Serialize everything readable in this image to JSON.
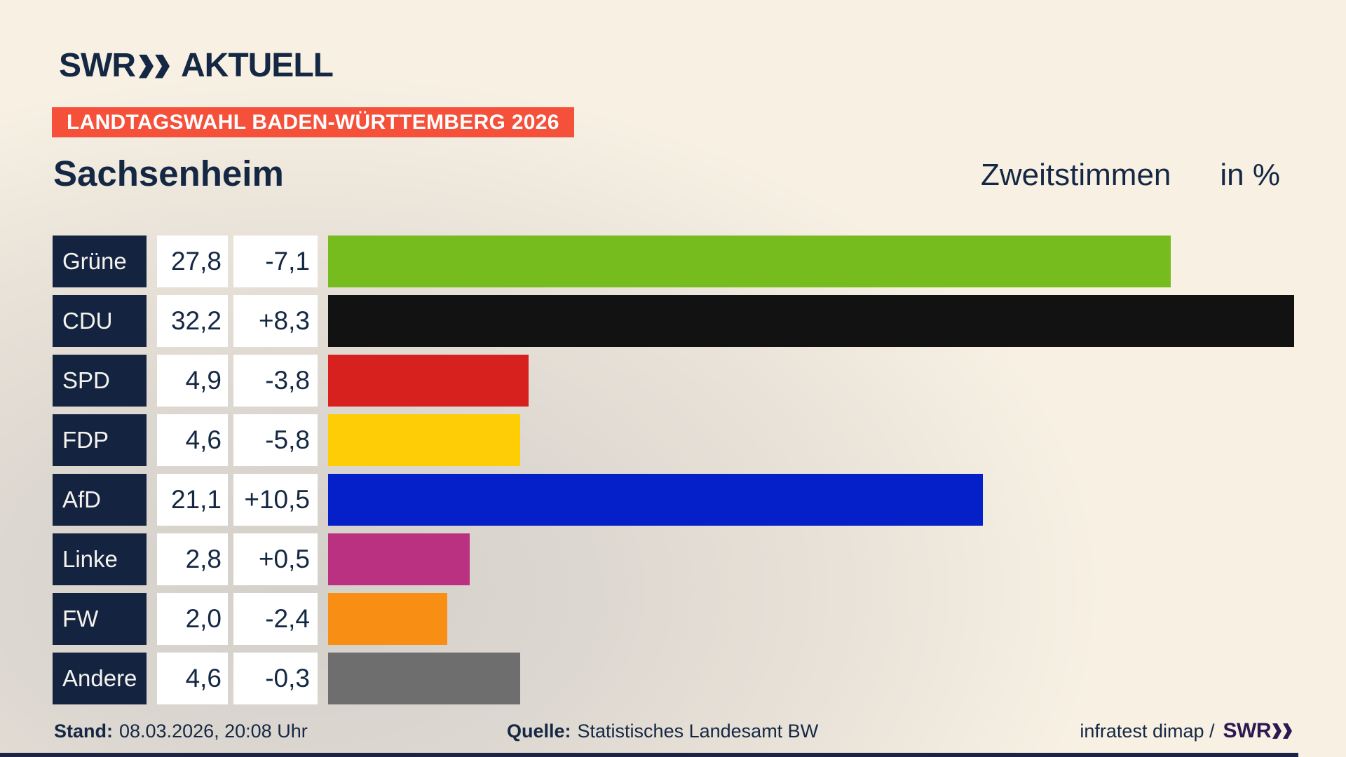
{
  "brand": {
    "logo_swr": "SWR",
    "logo_suffix": "AKTUELL"
  },
  "banner": {
    "text": "LANDTAGSWAHL BADEN-WÜRTTEMBERG 2026",
    "bg": "#f4503a"
  },
  "title": {
    "left": "Sachsenheim",
    "right_main": "Zweitstimmen",
    "right_unit": "in %"
  },
  "chart_data": {
    "type": "bar",
    "orientation": "horizontal",
    "title": "Zweitstimmen in % — Sachsenheim, Landtagswahl Baden-Württemberg 2026",
    "categories": [
      "Grüne",
      "CDU",
      "SPD",
      "FDP",
      "AfD",
      "Linke",
      "FW",
      "Andere"
    ],
    "values": [
      27.8,
      32.2,
      4.9,
      4.6,
      21.1,
      2.8,
      2.0,
      4.6
    ],
    "value_labels": [
      "27,8",
      "32,2",
      "4,9",
      "4,6",
      "21,1",
      "2,8",
      "2,0",
      "4,6"
    ],
    "diff_values": [
      -7.1,
      8.3,
      -3.8,
      -5.8,
      10.5,
      0.5,
      -2.4,
      -0.3
    ],
    "diff_labels": [
      "-7,1",
      "+8,3",
      "-3,8",
      "-5,8",
      "+10,5",
      "+0,5",
      "-2,4",
      "-0,3"
    ],
    "bar_colors": [
      "#76bc1e",
      "#121212",
      "#d7211e",
      "#ffcd05",
      "#0520c8",
      "#b93180",
      "#f98e14",
      "#6e6e6e"
    ],
    "xlim": [
      0,
      32.2
    ],
    "grid": false,
    "legend": "none"
  },
  "footer": {
    "stand_label": "Stand:",
    "stand_value": "08.03.2026, 20:08 Uhr",
    "quelle_label": "Quelle:",
    "quelle_value": "Statistisches Landesamt BW",
    "credit_text": "infratest dimap /",
    "credit_logo": "SWR"
  },
  "colors": {
    "text_navy": "#142743",
    "label_box_navy": "#142340",
    "banner_red": "#f4503a",
    "value_box_white": "#ffffff",
    "credit_purple": "#2d1952"
  }
}
